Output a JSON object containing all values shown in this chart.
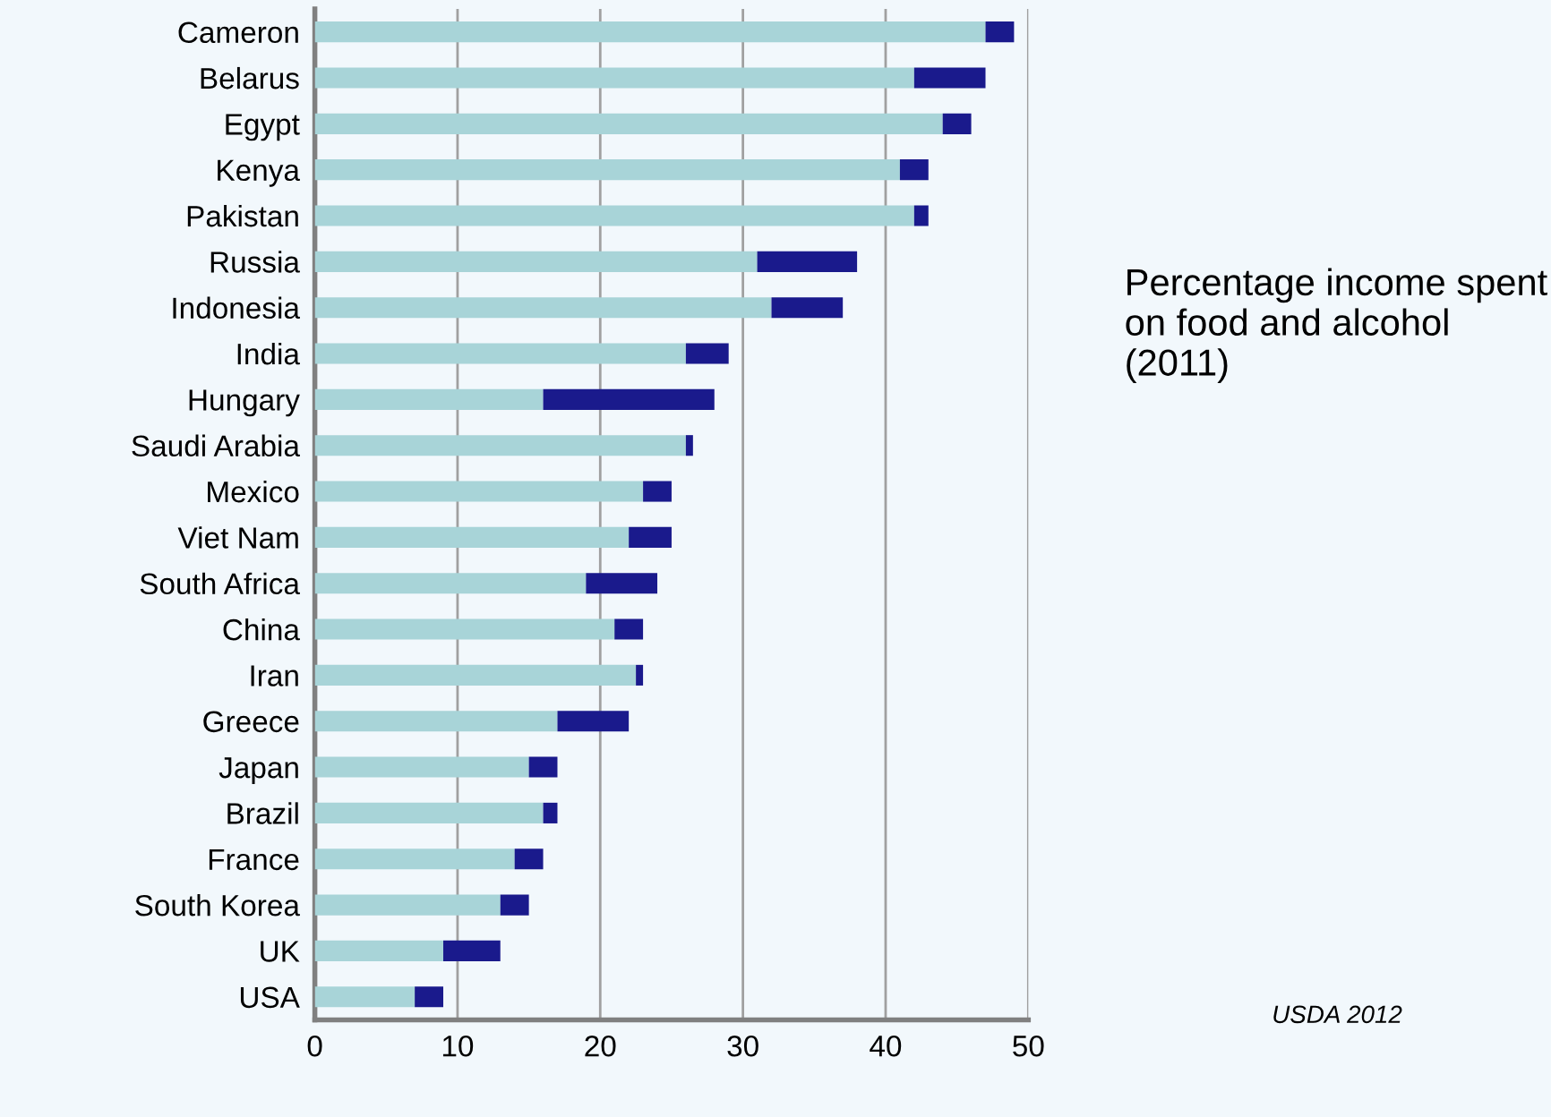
{
  "chart_data": {
    "type": "bar",
    "orientation": "horizontal",
    "stacked": true,
    "title": "Percentage income spent on food and alcohol (2011)",
    "categories": [
      "Cameron",
      "Belarus",
      "Egypt",
      "Kenya",
      "Pakistan",
      "Russia",
      "Indonesia",
      "India",
      "Hungary",
      "Saudi Arabia",
      "Mexico",
      "Viet Nam",
      "South Africa",
      "China",
      "Iran",
      "Greece",
      "Japan",
      "Brazil",
      "France",
      "South Korea",
      "UK",
      "USA"
    ],
    "series": [
      {
        "color": "#a8d4d8",
        "values": [
          47,
          42,
          44,
          41,
          42,
          31,
          32,
          26,
          16,
          26,
          23,
          22,
          19,
          21,
          22.5,
          17,
          15,
          16,
          14,
          13,
          9,
          7
        ]
      },
      {
        "color": "#1a1a8c",
        "values": [
          2,
          5,
          2,
          2,
          1,
          7,
          5,
          3,
          12,
          0.5,
          2,
          3,
          5,
          2,
          0.5,
          5,
          2,
          1,
          2,
          2,
          4,
          2
        ]
      }
    ],
    "xlim": [
      0,
      50
    ],
    "xticks": [
      0,
      10,
      20,
      30,
      40,
      50
    ],
    "grid": "x",
    "annotations": [
      "USDA 2012"
    ]
  }
}
